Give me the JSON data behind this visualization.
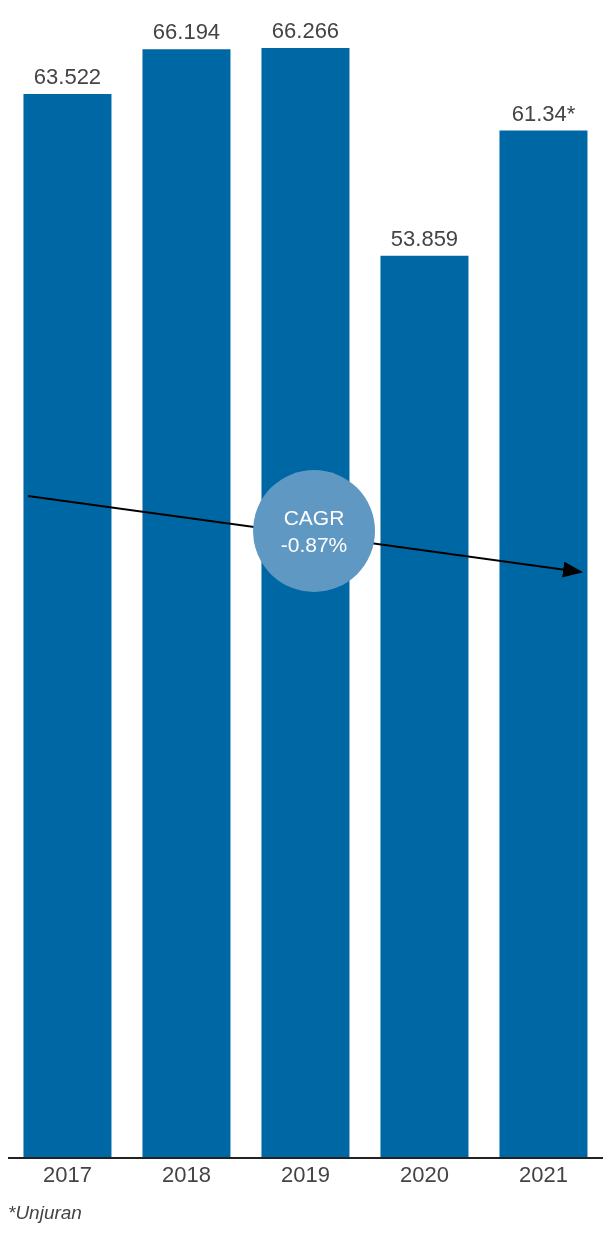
{
  "chart_data": {
    "type": "bar",
    "categories": [
      "2017",
      "2018",
      "2019",
      "2020",
      "2021"
    ],
    "values": [
      63.522,
      66.194,
      66.266,
      53.859,
      61.34
    ],
    "value_labels": [
      "63.522",
      "66.194",
      "66.266",
      "53.859",
      "61.34*"
    ],
    "color": "#0067a5",
    "annotations": [
      "CAGR -0.87%",
      "*Unjuran"
    ]
  }
}
